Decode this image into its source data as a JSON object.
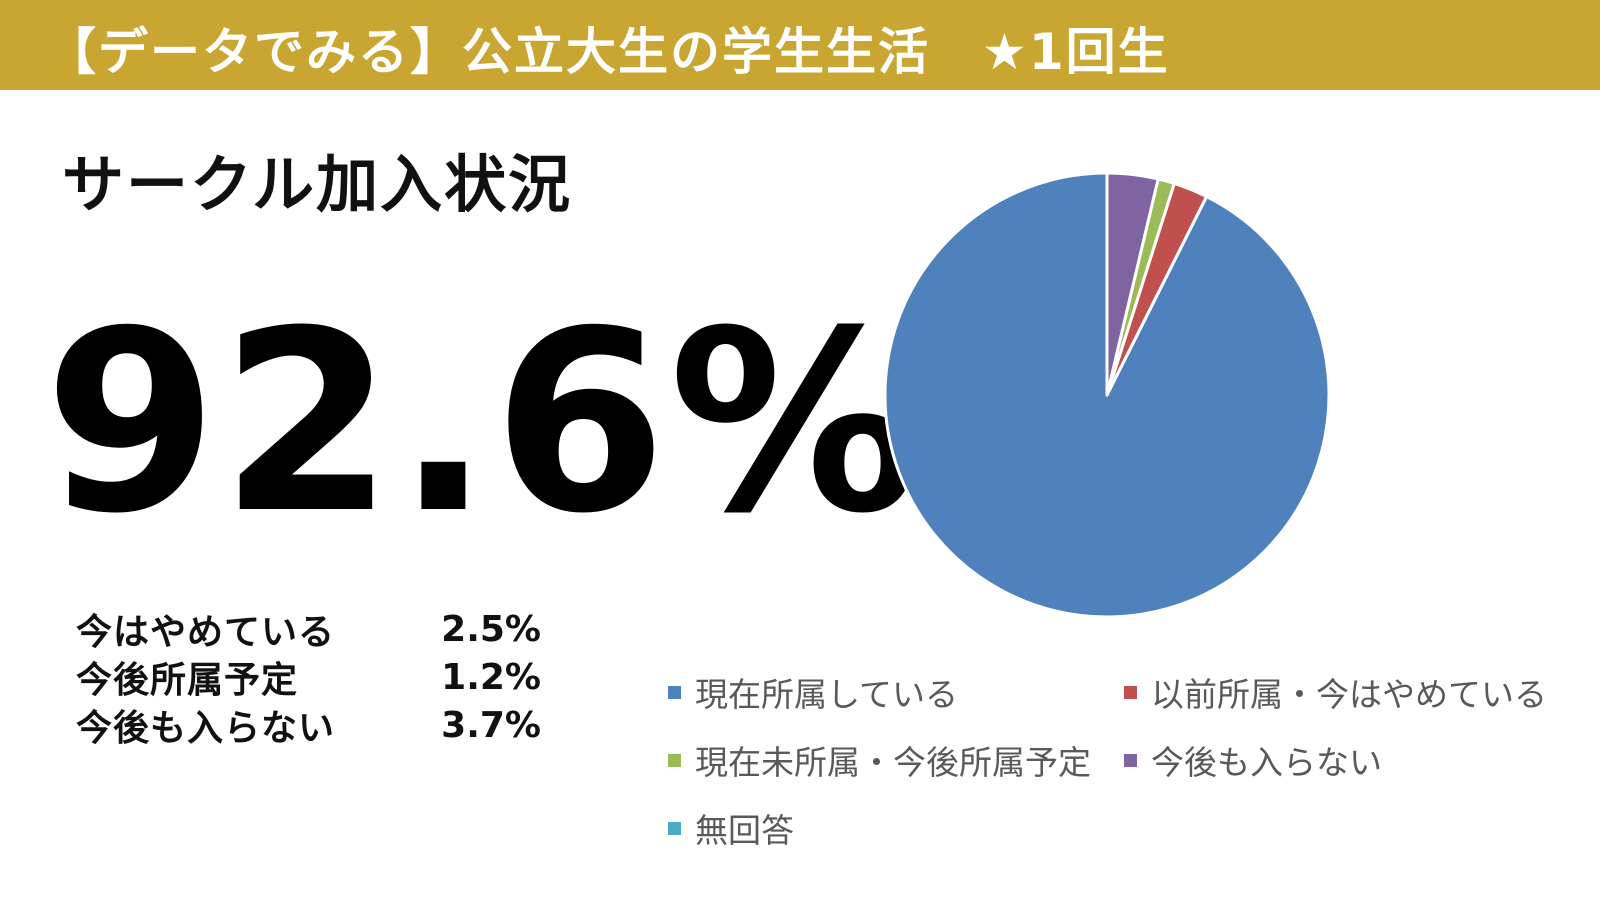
{
  "header": {
    "title": "【データでみる】公立大生の学生生活　★1回生",
    "background": "#c8a631"
  },
  "section_title": "サークル加入状況",
  "headline_value": "92.6%",
  "stats": [
    {
      "label": "今はやめている",
      "value": "2.5%"
    },
    {
      "label": "今後所属予定",
      "value": "1.2%"
    },
    {
      "label": "今後も入らない",
      "value": "3.7%"
    }
  ],
  "chart_data": {
    "type": "pie",
    "title": "",
    "start_angle": "12 o'clock",
    "direction": "counterclockwise",
    "slice_separator": "white",
    "legend": "bottom",
    "categories": [
      "現在所属している",
      "以前所属・今はやめている",
      "現在未所属・今後所属予定",
      "今後も入らない",
      "無回答"
    ],
    "values": [
      92.6,
      2.5,
      1.2,
      3.7,
      0.0
    ],
    "colors": [
      "#4f81bd",
      "#c0504d",
      "#9bbb59",
      "#8064a2",
      "#4bacc6"
    ]
  }
}
